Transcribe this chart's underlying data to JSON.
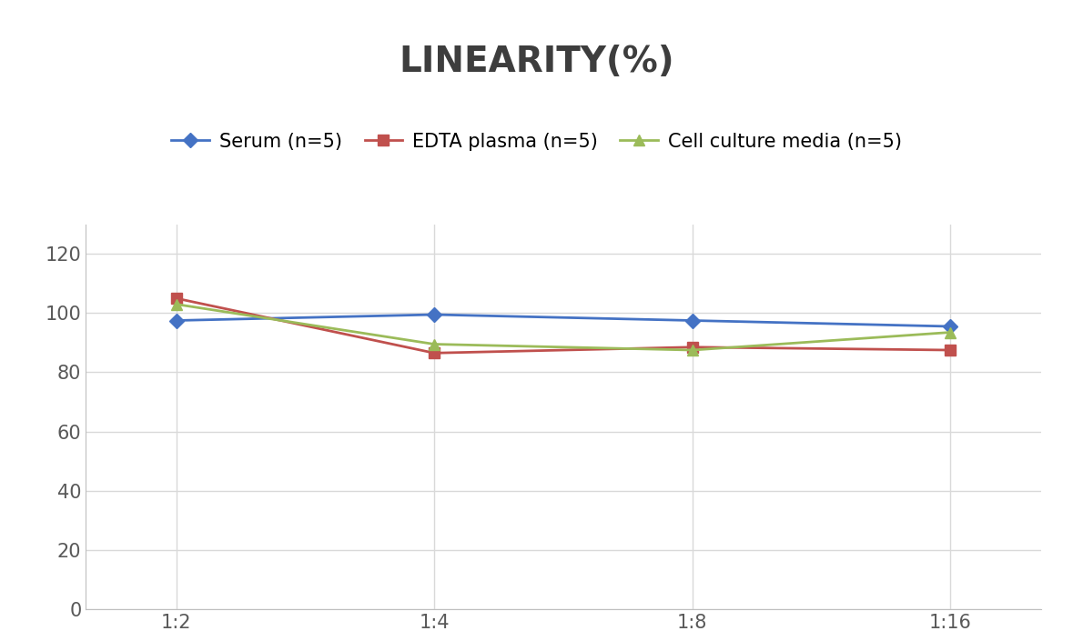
{
  "title": "LINEARITY(%)",
  "x_labels": [
    "1:2",
    "1:4",
    "1:8",
    "1:16"
  ],
  "x_positions": [
    0,
    1,
    2,
    3
  ],
  "series": [
    {
      "label": "Serum (n=5)",
      "values": [
        97.5,
        99.5,
        97.5,
        95.5
      ],
      "color": "#4472C4",
      "marker": "D",
      "markersize": 8,
      "linewidth": 2
    },
    {
      "label": "EDTA plasma (n=5)",
      "values": [
        105.0,
        86.5,
        88.5,
        87.5
      ],
      "color": "#C0504D",
      "marker": "s",
      "markersize": 8,
      "linewidth": 2
    },
    {
      "label": "Cell culture media (n=5)",
      "values": [
        103.0,
        89.5,
        87.5,
        93.5
      ],
      "color": "#9BBB59",
      "marker": "^",
      "markersize": 9,
      "linewidth": 2
    }
  ],
  "ylim": [
    0,
    130
  ],
  "yticks": [
    0,
    20,
    40,
    60,
    80,
    100,
    120
  ],
  "background_color": "#FFFFFF",
  "grid_color": "#D9D9D9",
  "title_fontsize": 28,
  "tick_fontsize": 15,
  "legend_fontsize": 15
}
